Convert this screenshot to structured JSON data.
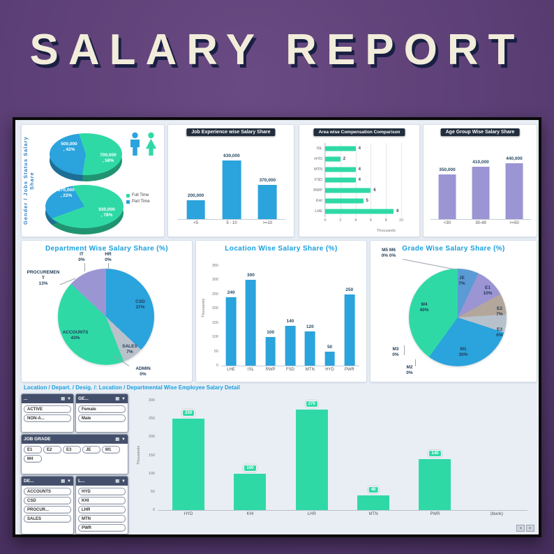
{
  "header": {
    "title": "SALARY REPORT"
  },
  "section_title": "Location / Depart. / Desig. /: Location / Departmental Wise Employee Salary Detail",
  "icons": {
    "multiselect": "▤",
    "clear_filter": "▼",
    "scroll_left": "◂",
    "scroll_right": "▸"
  },
  "slicers": [
    {
      "title": "...",
      "items": [
        "ACTIVE",
        "NON-A..."
      ]
    },
    {
      "title": "GE...",
      "items": [
        "Female",
        "Male"
      ]
    },
    {
      "title": "JOB GRADE",
      "items": [
        "E1",
        "E2",
        "E3",
        "JE",
        "M1",
        "M4"
      ]
    },
    {
      "title": "DE...",
      "items": [
        "ACCOUNTS",
        "CSD",
        "PROCUR...",
        "SALES"
      ]
    },
    {
      "title": "L...",
      "items": [
        "HYD",
        "KHI",
        "LHR",
        "MTN",
        "PWR"
      ]
    }
  ],
  "chart_data": [
    {
      "id": "gender-jobstatus-pies",
      "type": "pie",
      "title": "Gender / Jobs Status  Salary  Share",
      "legend": [
        {
          "label": "Full Time",
          "color": "#2fd9a6"
        },
        {
          "label": "Part Time",
          "color": "#2ba3dc"
        }
      ],
      "pies": {
        "gender": {
          "slices": [
            {
              "label": "500,000\n, 42%",
              "value": 500000,
              "pct": 42,
              "color": "#2ba3dc"
            },
            {
              "label": "700,000\n, 58%",
              "value": 700000,
              "pct": 58,
              "color": "#2fd9a6"
            }
          ]
        },
        "job_status": {
          "slices": [
            {
              "label": "270,000\n, 22%",
              "value": 270000,
              "pct": 22,
              "color": "#2ba3dc"
            },
            {
              "label": "930,000\n, 78%",
              "value": 930000,
              "pct": 78,
              "color": "#2fd9a6"
            }
          ]
        }
      }
    },
    {
      "id": "job-experience",
      "type": "bar",
      "title": "Job Experience wise Salary Share",
      "categories": [
        "<5",
        "5 - 10",
        ">=10"
      ],
      "values": [
        200000,
        630000,
        370000
      ],
      "labels": [
        "200,000",
        "630,000",
        "370,000"
      ],
      "ymax": 700000,
      "color": "#2ba3dc"
    },
    {
      "id": "area-compensation",
      "type": "hbar",
      "title": "Area wise Compensation Comparison",
      "categories": [
        "ISL",
        "HYD",
        "MTN",
        "FSD",
        "RWP",
        "KHI",
        "LHE"
      ],
      "values": [
        4,
        2,
        4,
        4,
        6,
        5,
        9
      ],
      "xmax": 10,
      "xticks": [
        0,
        2,
        4,
        6,
        8,
        10
      ],
      "xlabel": "Thousands",
      "color": "#2fd9a6"
    },
    {
      "id": "age-group",
      "type": "bar",
      "title": "Age Group Wise Salary Share",
      "categories": [
        "<30",
        "30-49",
        ">=50"
      ],
      "values": [
        350000,
        410000,
        440000
      ],
      "labels": [
        "350,000",
        "410,000",
        "440,000"
      ],
      "ymax": 500000,
      "color": "#9b95d4"
    },
    {
      "id": "department-share",
      "type": "pie",
      "title": "Department Wise Salary Share (%)",
      "slices": [
        {
          "name": "CSD",
          "label": "CSD\n37%",
          "pct": 37,
          "color": "#2ba3dc"
        },
        {
          "name": "SALES",
          "label": "SALES\n7%",
          "pct": 7,
          "color": "#b9c1cb"
        },
        {
          "name": "ADMIN",
          "label": "ADMIN\n0%",
          "pct": 0,
          "color": "#e8b54a"
        },
        {
          "name": "ACCOUNTS",
          "label": "ACCOUNTS\n43%",
          "pct": 43,
          "color": "#2fd9a6"
        },
        {
          "name": "PROCUREMENT",
          "label": "PROCUREMEN\nT\n13%",
          "pct": 13,
          "color": "#9b95d4"
        },
        {
          "name": "IT",
          "label": "IT\n0%",
          "pct": 0,
          "color": "#888888"
        },
        {
          "name": "HR",
          "label": "HR\n0%",
          "pct": 0,
          "color": "#888888"
        }
      ]
    },
    {
      "id": "location-share",
      "type": "bar",
      "title": "Location Wise Salary Share (%)",
      "categories": [
        "LHE",
        "ISL",
        "RWP",
        "FSD",
        "MTN",
        "HYD",
        "PWR"
      ],
      "values": [
        240,
        300,
        100,
        140,
        120,
        50,
        250
      ],
      "labels": [
        "240",
        "300",
        "100",
        "140",
        "120",
        "50",
        "250"
      ],
      "ymax": 350,
      "yticks": [
        0,
        50,
        100,
        150,
        200,
        250,
        300,
        350
      ],
      "ylabel": "Thousands",
      "color": "#2ba3dc"
    },
    {
      "id": "grade-share",
      "type": "pie",
      "title": "Grade Wise Salary Share (%)",
      "slices": [
        {
          "name": "JE",
          "label": "JE\n7%",
          "pct": 7,
          "color": "#5b9bd5"
        },
        {
          "name": "E1",
          "label": "E1\n10%",
          "pct": 10,
          "color": "#9b95d4"
        },
        {
          "name": "E2",
          "label": "E2\n7%",
          "pct": 7,
          "color": "#b3a79b"
        },
        {
          "name": "E3",
          "label": "E3\n6%",
          "pct": 6,
          "color": "#b7c1cb"
        },
        {
          "name": "M1",
          "label": "M1\n30%",
          "pct": 30,
          "color": "#2ba3dc"
        },
        {
          "name": "M2",
          "label": "M2\n0%",
          "pct": 0,
          "color": "#888888"
        },
        {
          "name": "M3",
          "label": "M3\n0%",
          "pct": 0,
          "color": "#888888"
        },
        {
          "name": "M4",
          "label": "M4\n40%",
          "pct": 40,
          "color": "#2fd9a6"
        },
        {
          "name": "M5 M6",
          "label": "M5 M6\n0% 0%",
          "pct": 0,
          "color": "#888888"
        }
      ]
    },
    {
      "id": "employee-salary-detail",
      "type": "bar",
      "chip": true,
      "categories": [
        "HYD",
        "KHI",
        "LHR",
        "MTN",
        "PWR",
        "(blank)"
      ],
      "values": [
        250,
        100,
        275,
        40,
        140,
        0
      ],
      "labels": [
        "250",
        "100",
        "275",
        "40",
        "140",
        ""
      ],
      "ymax": 300,
      "yticks": [
        0,
        50,
        100,
        150,
        200,
        250,
        300
      ],
      "ylabel": "Thousands",
      "color": "#2fd9a6"
    }
  ]
}
